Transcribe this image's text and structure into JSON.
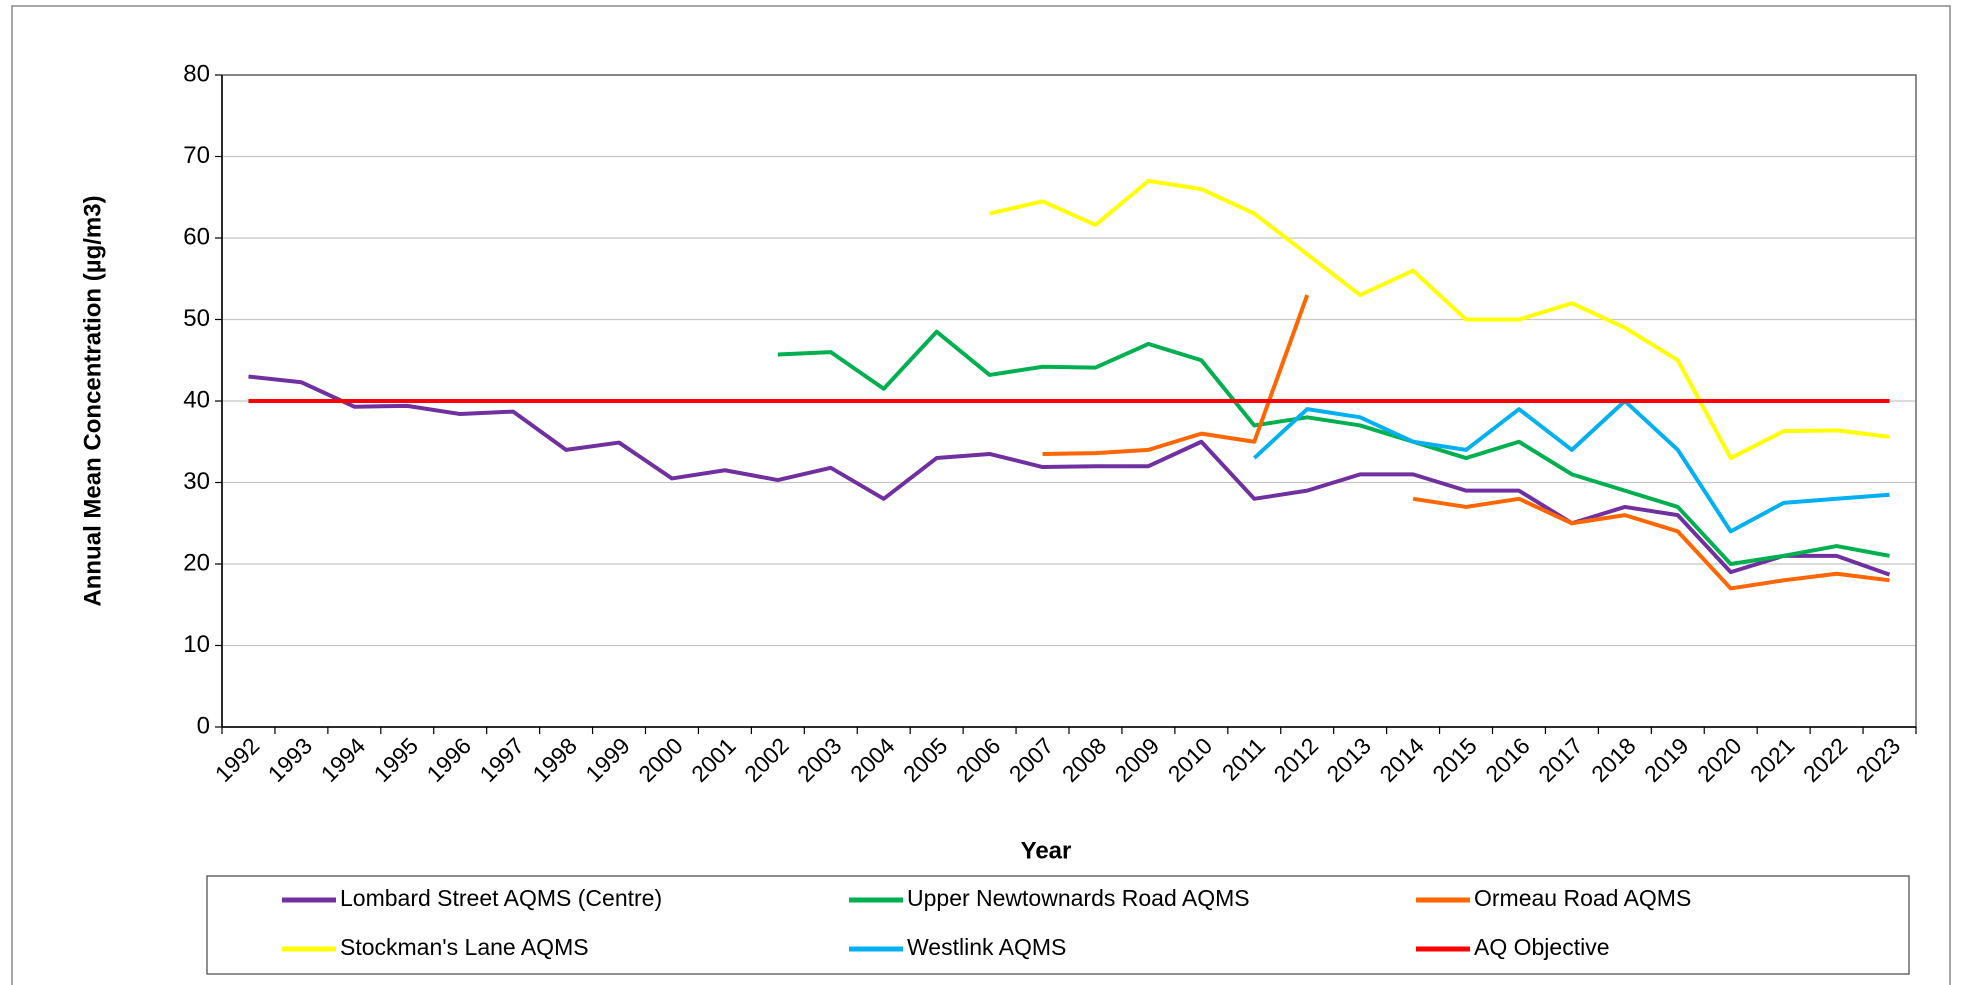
{
  "chart_data": {
    "type": "line",
    "x_label": "Year",
    "y_label": "Annual Mean Concentration (µg/m3)",
    "categories": [
      "1992",
      "1993",
      "1994",
      "1995",
      "1996",
      "1997",
      "1998",
      "1999",
      "2000",
      "2001",
      "2002",
      "2003",
      "2004",
      "2005",
      "2006",
      "2007",
      "2008",
      "2009",
      "2010",
      "2011",
      "2012",
      "2013",
      "2014",
      "2015",
      "2016",
      "2017",
      "2018",
      "2019",
      "2020",
      "2021",
      "2022",
      "2023"
    ],
    "ylim": [
      0,
      80
    ],
    "yticks": [
      0,
      10,
      20,
      30,
      40,
      50,
      60,
      70,
      80
    ],
    "grid": true,
    "legend": "bottom",
    "series": [
      {
        "name": "Lombard Street AQMS (Centre)",
        "color": "#7030a0",
        "values": [
          43,
          42.3,
          39.3,
          39.4,
          38.4,
          38.7,
          34,
          34.9,
          30.5,
          31.5,
          30.3,
          31.8,
          28,
          33,
          33.5,
          31.9,
          32,
          32,
          35,
          28,
          29,
          31,
          31,
          29,
          29,
          25,
          27,
          26,
          19,
          21,
          21,
          18.7
        ]
      },
      {
        "name": "Upper Newtownards Road AQMS",
        "color": "#00b050",
        "values": [
          null,
          null,
          null,
          null,
          null,
          null,
          null,
          null,
          null,
          null,
          45.7,
          46,
          41.5,
          48.5,
          43.2,
          44.2,
          44.1,
          47,
          45,
          37,
          38,
          37,
          35,
          33,
          35,
          31,
          29,
          27,
          20,
          21,
          22.2,
          21
        ]
      },
      {
        "name": "Ormeau Road AQMS",
        "color": "#ff6600",
        "values": [
          null,
          null,
          null,
          null,
          null,
          null,
          null,
          null,
          null,
          null,
          null,
          null,
          null,
          null,
          null,
          33.5,
          33.6,
          34,
          36,
          35,
          53,
          null,
          28,
          27,
          28,
          25,
          26,
          24,
          17,
          18,
          18.8,
          18
        ]
      },
      {
        "name": "Stockman's Lane AQMS",
        "color": "#ffff00",
        "values": [
          null,
          null,
          null,
          null,
          null,
          null,
          null,
          null,
          null,
          null,
          null,
          null,
          null,
          null,
          63,
          64.5,
          61.6,
          67,
          66,
          63,
          58,
          53,
          56,
          50,
          50,
          52,
          49,
          45,
          33,
          36.3,
          36.4,
          35.6
        ]
      },
      {
        "name": "Westlink AQMS",
        "color": "#00b0f0",
        "values": [
          null,
          null,
          null,
          null,
          null,
          null,
          null,
          null,
          null,
          null,
          null,
          null,
          null,
          null,
          null,
          null,
          null,
          null,
          null,
          33,
          39,
          38,
          35,
          34,
          39,
          34,
          40,
          34,
          24,
          27.5,
          28,
          28.5
        ]
      },
      {
        "name": "AQ Objective",
        "color": "#ff0000",
        "values": [
          40,
          40,
          40,
          40,
          40,
          40,
          40,
          40,
          40,
          40,
          40,
          40,
          40,
          40,
          40,
          40,
          40,
          40,
          40,
          40,
          40,
          40,
          40,
          40,
          40,
          40,
          40,
          40,
          40,
          40,
          40,
          40
        ]
      }
    ]
  }
}
